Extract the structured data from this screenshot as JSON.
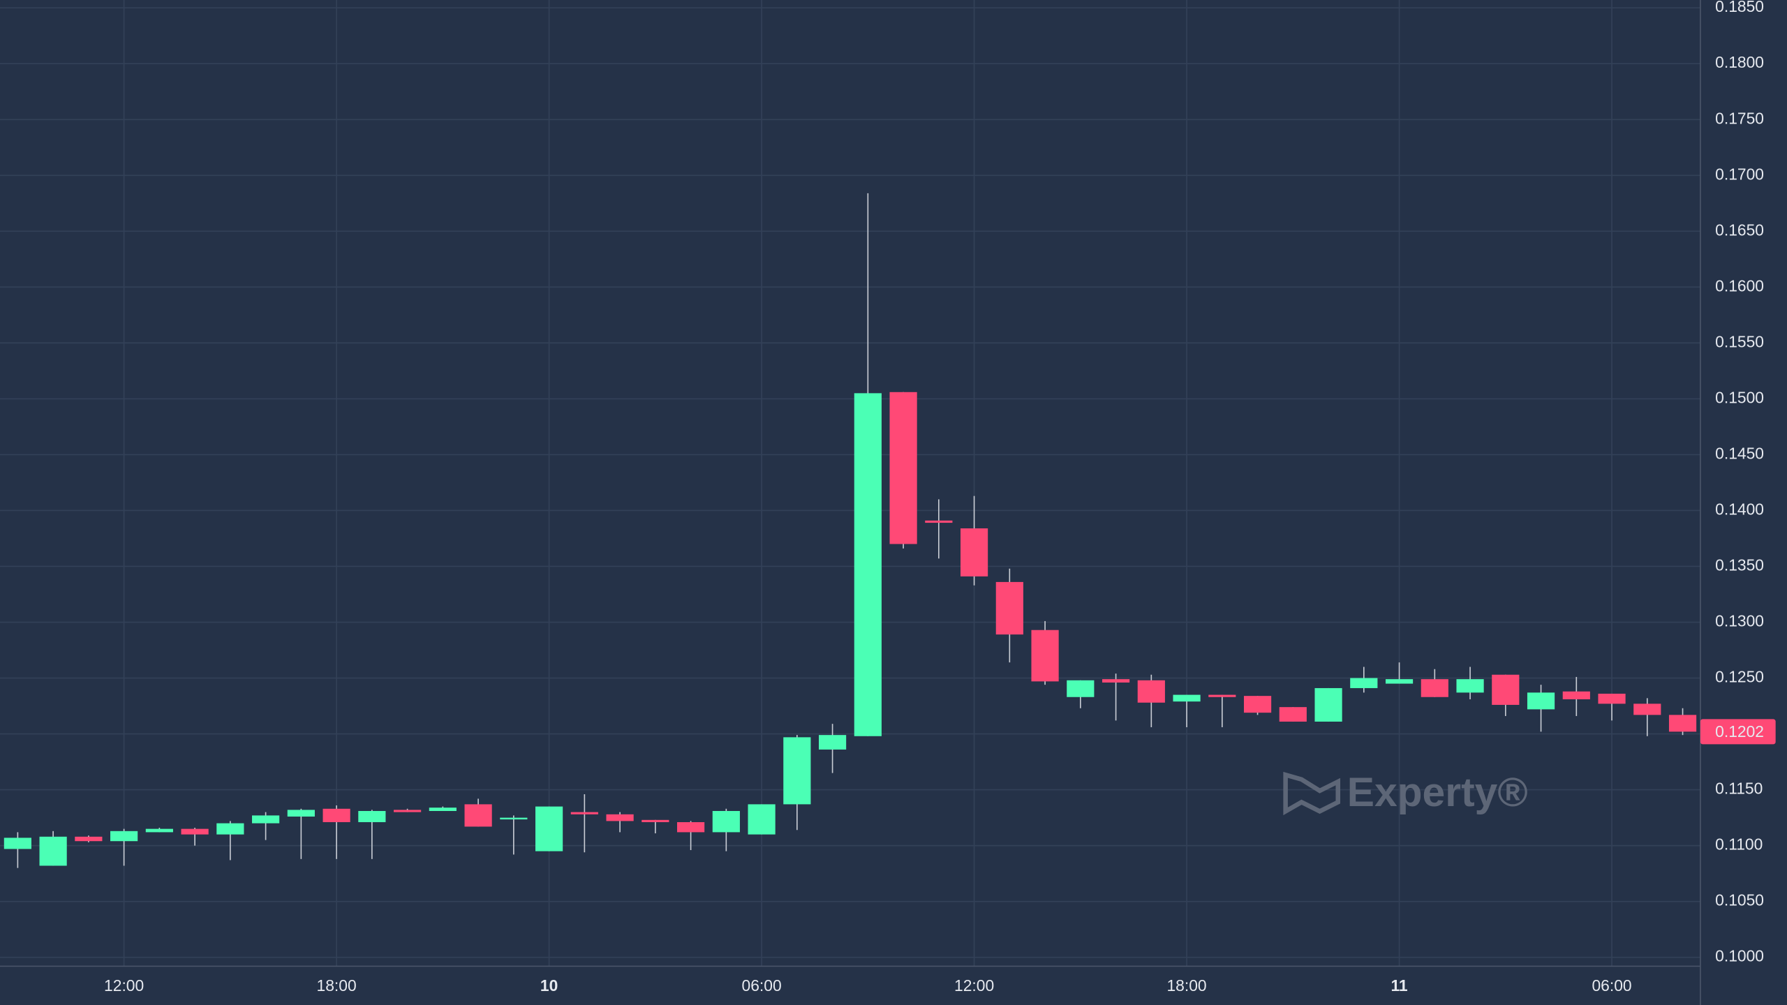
{
  "chart_data": {
    "type": "candlestick",
    "categories": [
      null,
      null,
      null,
      "12:00",
      null,
      null,
      null,
      null,
      null,
      "18:00",
      null,
      null,
      null,
      null,
      null,
      "10",
      null,
      null,
      null,
      null,
      null,
      "06:00",
      null,
      null,
      null,
      null,
      null,
      "12:00",
      null,
      null,
      null,
      null,
      null,
      "18:00",
      null,
      null,
      null,
      null,
      null,
      "11",
      null,
      null,
      null,
      null,
      null,
      "06:00",
      null,
      null
    ],
    "open": [
      0.1097,
      0.1082,
      0.1108,
      0.1104,
      0.1112,
      0.1115,
      0.111,
      0.112,
      0.1126,
      0.1133,
      0.1121,
      0.1132,
      0.1131,
      0.1137,
      0.1124,
      0.1095,
      0.113,
      0.1128,
      0.1123,
      0.1121,
      0.1112,
      0.111,
      0.1137,
      0.1186,
      0.1198,
      0.1506,
      0.1391,
      0.1384,
      0.1336,
      0.1293,
      0.1233,
      0.1249,
      0.1248,
      0.1229,
      0.1235,
      0.1234,
      0.1224,
      0.1211,
      0.1241,
      0.1245,
      0.1249,
      0.1237,
      0.1253,
      0.1222,
      0.1238,
      0.1236,
      0.1227,
      0.1217
    ],
    "high": [
      0.1112,
      0.1113,
      0.1109,
      0.1115,
      0.1116,
      0.1116,
      0.1122,
      0.113,
      0.1133,
      0.1136,
      0.1132,
      0.1133,
      0.1135,
      0.1142,
      0.1127,
      0.1135,
      0.1146,
      0.113,
      0.1123,
      0.1122,
      0.1133,
      0.1137,
      0.1199,
      0.1209,
      0.1684,
      0.1506,
      0.141,
      0.1413,
      0.1348,
      0.1301,
      0.1248,
      0.1254,
      0.1253,
      0.1235,
      0.1235,
      0.1234,
      0.1224,
      0.1241,
      0.126,
      0.1264,
      0.1258,
      0.126,
      0.1253,
      0.1244,
      0.1251,
      0.1236,
      0.1232,
      0.1223
    ],
    "low": [
      0.108,
      0.1082,
      0.1103,
      0.1082,
      0.1112,
      0.11,
      0.1087,
      0.1105,
      0.1088,
      0.1088,
      0.1088,
      0.113,
      0.1131,
      0.1117,
      0.1092,
      0.1095,
      0.1094,
      0.1112,
      0.1111,
      0.1096,
      0.1095,
      0.111,
      0.1114,
      0.1165,
      0.1198,
      0.1366,
      0.1357,
      0.1333,
      0.1264,
      0.1244,
      0.1223,
      0.1212,
      0.1206,
      0.1206,
      0.1206,
      0.1217,
      0.1211,
      0.1211,
      0.1237,
      0.1245,
      0.1233,
      0.1231,
      0.1216,
      0.1202,
      0.1216,
      0.1212,
      0.1198,
      0.1199
    ],
    "close": [
      0.1107,
      0.1108,
      0.1104,
      0.1113,
      0.1115,
      0.111,
      0.112,
      0.1127,
      0.1132,
      0.1121,
      0.1131,
      0.113,
      0.1134,
      0.1117,
      0.1125,
      0.1135,
      0.1128,
      0.1122,
      0.1121,
      0.1112,
      0.1131,
      0.1137,
      0.1197,
      0.1199,
      0.1505,
      0.137,
      0.1389,
      0.1341,
      0.1289,
      0.1247,
      0.1248,
      0.1246,
      0.1228,
      0.1235,
      0.1233,
      0.1219,
      0.1211,
      0.1241,
      0.125,
      0.1249,
      0.1233,
      0.1249,
      0.1226,
      0.1237,
      0.1231,
      0.1227,
      0.1217,
      0.1202
    ],
    "up_color": "#4bffb5",
    "down_color": "#ff4976",
    "ylim": [
      0.0992,
      0.1857
    ],
    "yticks": [
      {
        "value": 0.1,
        "label": "0.1000"
      },
      {
        "value": 0.105,
        "label": "0.1050"
      },
      {
        "value": 0.11,
        "label": "0.1100"
      },
      {
        "value": 0.115,
        "label": "0.1150"
      },
      {
        "value": 0.12,
        "label": "0.1200"
      },
      {
        "value": 0.125,
        "label": "0.1250"
      },
      {
        "value": 0.13,
        "label": "0.1300"
      },
      {
        "value": 0.135,
        "label": "0.1350"
      },
      {
        "value": 0.14,
        "label": "0.1400"
      },
      {
        "value": 0.145,
        "label": "0.1450"
      },
      {
        "value": 0.15,
        "label": "0.1500"
      },
      {
        "value": 0.155,
        "label": "0.1550"
      },
      {
        "value": 0.16,
        "label": "0.1600"
      },
      {
        "value": 0.165,
        "label": "0.1650"
      },
      {
        "value": 0.17,
        "label": "0.1700"
      },
      {
        "value": 0.175,
        "label": "0.1750"
      },
      {
        "value": 0.18,
        "label": "0.1800"
      },
      {
        "value": 0.185,
        "label": "0.1850"
      }
    ],
    "grid": true,
    "last_price": 0.1202,
    "watermark": "Experty®"
  }
}
